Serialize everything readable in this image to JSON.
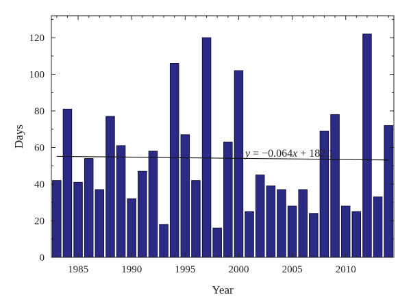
{
  "chart_data": {
    "type": "bar",
    "x": [
      1983,
      1984,
      1985,
      1986,
      1987,
      1988,
      1989,
      1990,
      1991,
      1992,
      1993,
      1994,
      1995,
      1996,
      1997,
      1998,
      1999,
      2000,
      2001,
      2002,
      2003,
      2004,
      2005,
      2006,
      2007,
      2008,
      2009,
      2010,
      2011,
      2012,
      2013,
      2014
    ],
    "values": [
      42,
      81,
      41,
      54,
      37,
      77,
      61,
      32,
      47,
      58,
      18,
      106,
      67,
      42,
      120,
      16,
      63,
      102,
      25,
      45,
      39,
      37,
      28,
      37,
      24,
      69,
      78,
      28,
      25,
      122,
      33,
      72
    ],
    "xlabel": "Year",
    "ylabel": "Days",
    "xlim": [
      1982.5,
      2014.5
    ],
    "ylim": [
      0,
      132
    ],
    "xticks": [
      1985,
      1990,
      1995,
      2000,
      2005,
      2010
    ],
    "yticks": [
      0,
      20,
      40,
      60,
      80,
      100,
      120
    ],
    "bar_color": "#2b2b86",
    "bar_edge_color": "#0f0f40",
    "trendline": {
      "slope": -0.064,
      "intercept": 182.1,
      "x_range": [
        1983,
        2014
      ],
      "equation": {
        "y": "y",
        "mid": " = −0.064",
        "x": "x",
        "end": " + 182.1"
      }
    },
    "grid": false,
    "legend": "none"
  }
}
